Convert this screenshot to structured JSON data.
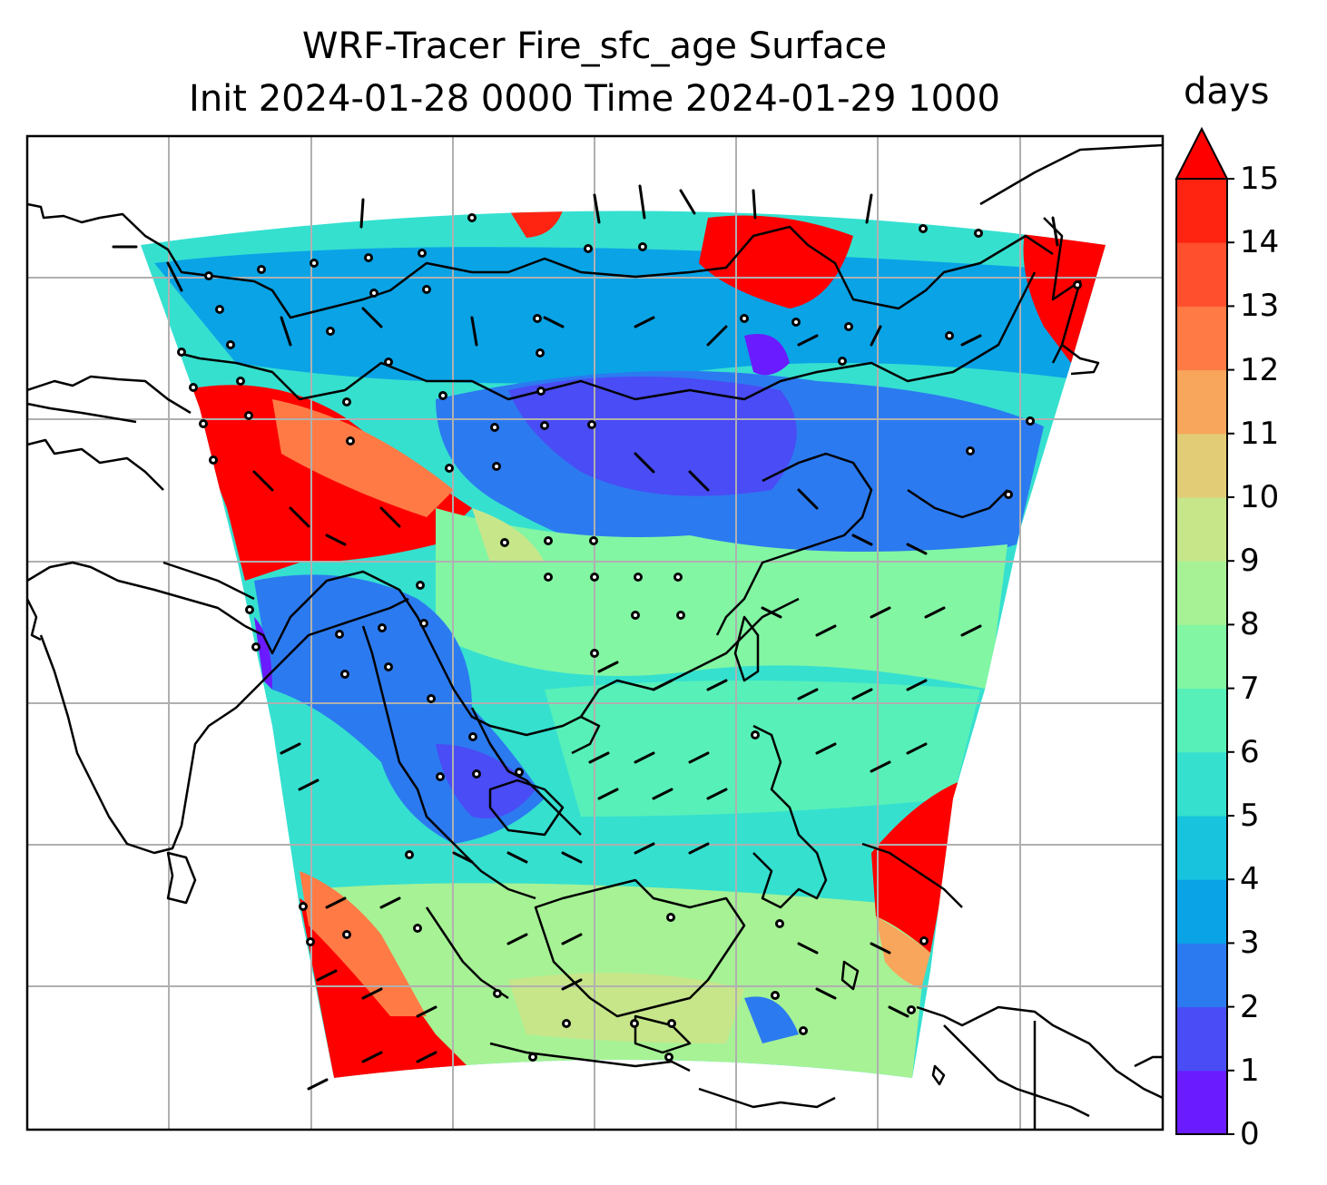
{
  "title": {
    "line1": "WRF-Tracer Fire_sfc_age Surface",
    "line2": "Init 2024-01-28 0000 Time 2024-01-29 1000"
  },
  "colorbar": {
    "unit": "days",
    "ticks": [
      "0",
      "1",
      "2",
      "3",
      "4",
      "5",
      "6",
      "7",
      "8",
      "9",
      "10",
      "11",
      "12",
      "13",
      "14",
      "15"
    ],
    "extend": "max",
    "colors": [
      "#6a1bff",
      "#4a4cf5",
      "#2c7af0",
      "#0aa3e6",
      "#17c3dd",
      "#35e0cf",
      "#57f0b8",
      "#82f6a3",
      "#a6f295",
      "#c7e68a",
      "#e2cc76",
      "#f7a65b",
      "#ff7a45",
      "#ff4f2d",
      "#ff2412",
      "#ff0000"
    ]
  },
  "map": {
    "projection": "Lambert conformal",
    "field": "Fire_sfc_age (days)",
    "gridlines": true,
    "coastlines": true,
    "wind_barbs": true,
    "colors": {
      "land_outside": "#ffffff",
      "gridline": "#b0b0b0",
      "coastline": "#000000"
    }
  }
}
